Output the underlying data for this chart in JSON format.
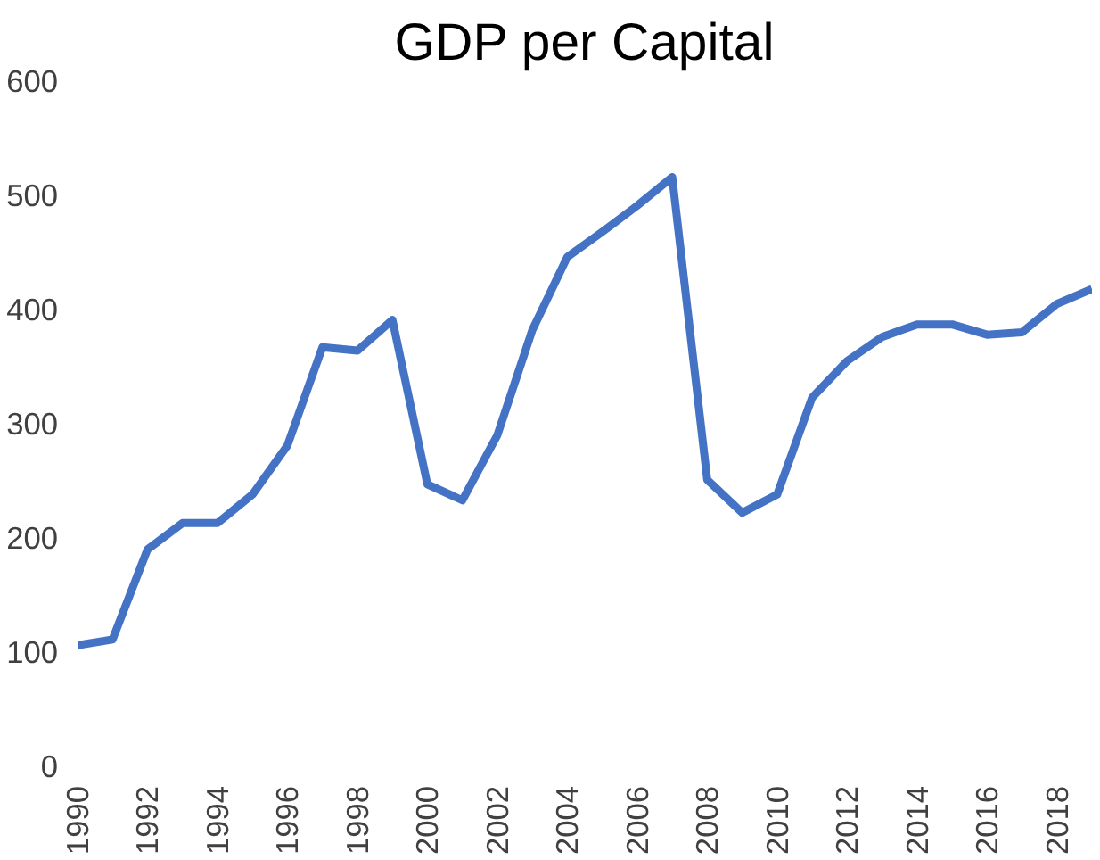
{
  "chart_data": {
    "type": "line",
    "title": "GDP per Capital",
    "categories": [
      "1990",
      null,
      "1992",
      null,
      "1994",
      null,
      "1996",
      null,
      "1998",
      null,
      "2000",
      null,
      "2002",
      null,
      "2004",
      null,
      "2006",
      null,
      "2008",
      null,
      "2010",
      null,
      "2012",
      null,
      "2014",
      null,
      "2016",
      null,
      "2018",
      null
    ],
    "series": [
      {
        "color": "#4472c4",
        "values": [
          106,
          111,
          190,
          213,
          213,
          238,
          281,
          367,
          364,
          391,
          247,
          233,
          290,
          382,
          446,
          468,
          491,
          516,
          251,
          222,
          238,
          323,
          355,
          376,
          387,
          387,
          378,
          380,
          405,
          418
        ]
      }
    ],
    "ylim": [
      0,
      600
    ],
    "yticks": [
      0,
      100,
      200,
      300,
      400,
      500,
      600
    ],
    "grid": false,
    "marker": "none",
    "line_style": "solid"
  }
}
